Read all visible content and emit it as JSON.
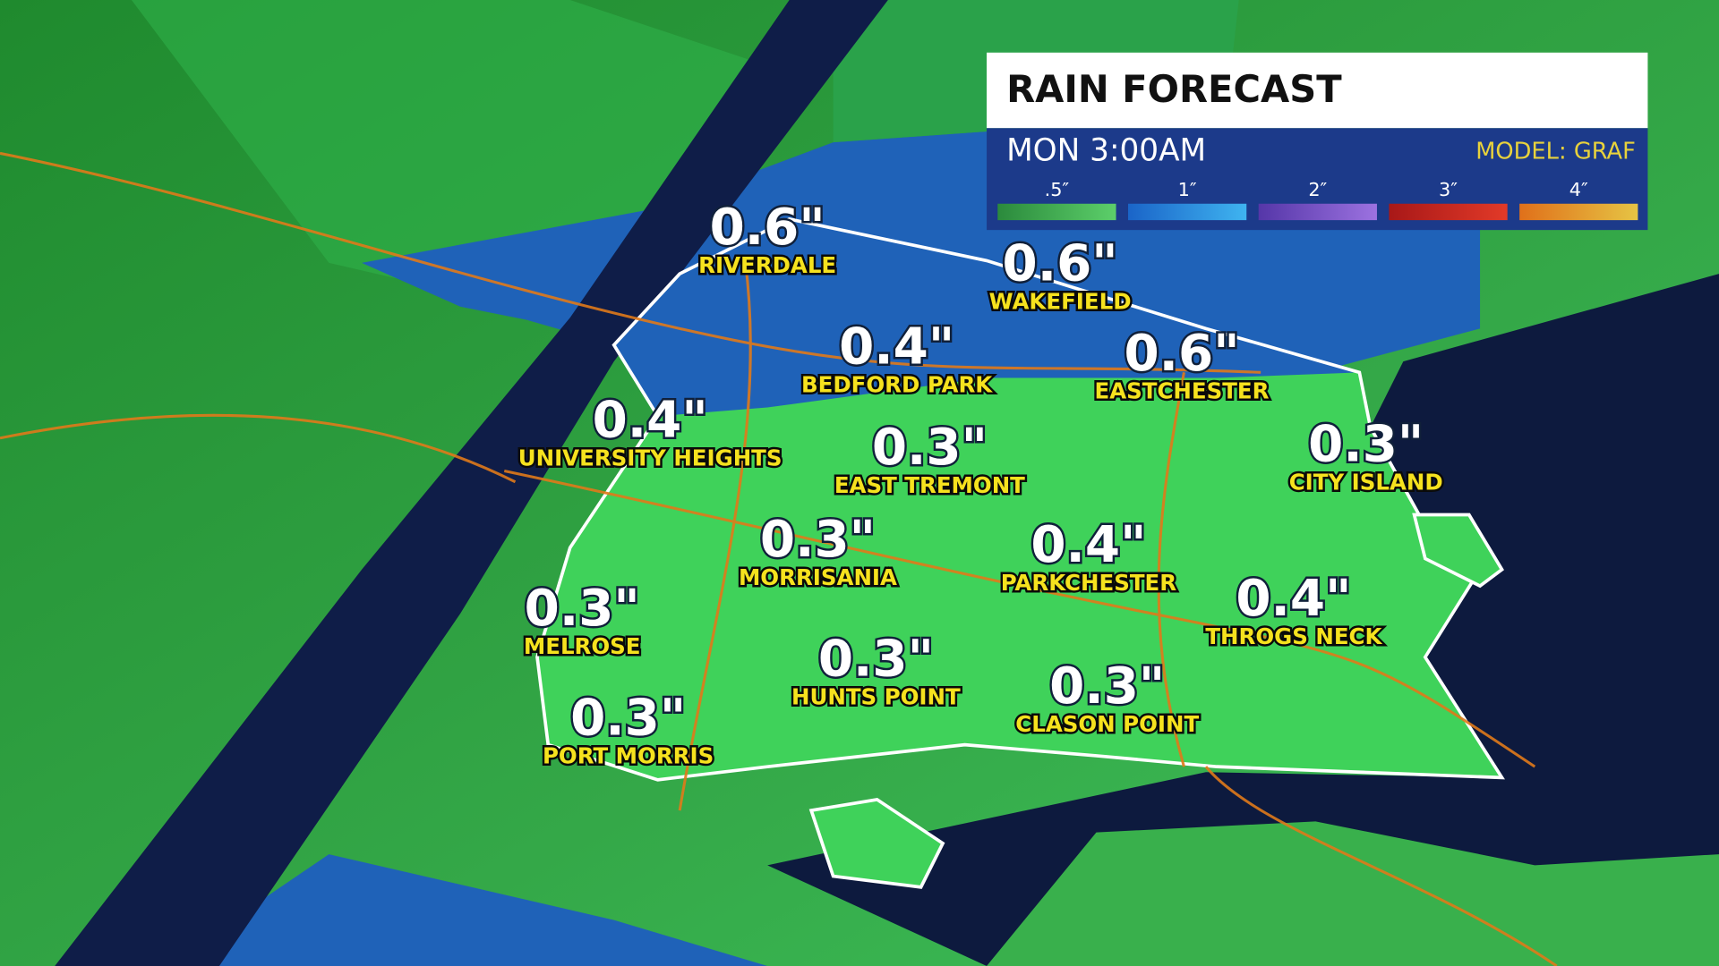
{
  "header": {
    "title": "RAIN FORECAST",
    "time": "MON 3:00AM",
    "model": "MODEL: GRAF"
  },
  "legend": [
    {
      "label": ".5″",
      "colors": [
        "#2b8a3c",
        "#5ccf6a"
      ]
    },
    {
      "label": "1″",
      "colors": [
        "#1a64c8",
        "#3fb4f0"
      ]
    },
    {
      "label": "2″",
      "colors": [
        "#5536a8",
        "#9c72e0"
      ]
    },
    {
      "label": "3″",
      "colors": [
        "#a81818",
        "#e23a28"
      ]
    },
    {
      "label": "4″",
      "colors": [
        "#e0701a",
        "#e6c444"
      ]
    }
  ],
  "locations": [
    {
      "amount": "0.6\"",
      "name": "RIVERDALE"
    },
    {
      "amount": "0.6\"",
      "name": "WAKEFIELD"
    },
    {
      "amount": "0.4\"",
      "name": "BEDFORD PARK"
    },
    {
      "amount": "0.6\"",
      "name": "EASTCHESTER"
    },
    {
      "amount": "0.4\"",
      "name": "UNIVERSITY HEIGHTS"
    },
    {
      "amount": "0.3\"",
      "name": "EAST TREMONT"
    },
    {
      "amount": "0.3\"",
      "name": "CITY ISLAND"
    },
    {
      "amount": "0.3\"",
      "name": "MORRISANIA"
    },
    {
      "amount": "0.4\"",
      "name": "PARKCHESTER"
    },
    {
      "amount": "0.3\"",
      "name": "MELROSE"
    },
    {
      "amount": "0.4\"",
      "name": "THROGS NECK"
    },
    {
      "amount": "0.3\"",
      "name": "HUNTS POINT"
    },
    {
      "amount": "0.3\"",
      "name": "CLASON POINT"
    },
    {
      "amount": "0.3\"",
      "name": "PORT MORRIS"
    }
  ]
}
